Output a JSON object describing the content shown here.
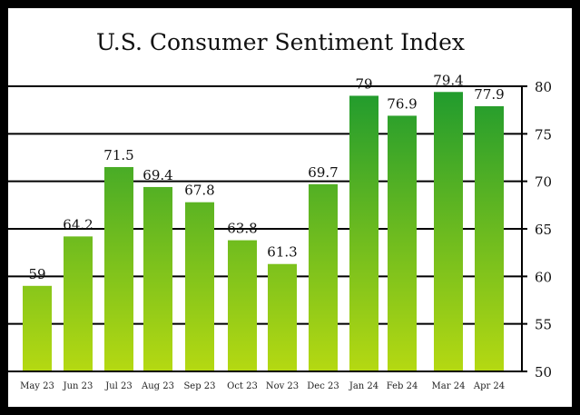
{
  "chart_data": {
    "type": "bar",
    "title": "U.S. Consumer Sentiment Index",
    "xlabel": "",
    "ylabel": "",
    "categories": [
      "May 23",
      "Jun 23",
      "Jul 23",
      "Aug 23",
      "Sep 23",
      "Oct 23",
      "Nov 23",
      "Dec 23",
      "Jan 24",
      "Feb 24",
      "Mar 24",
      "Apr 24"
    ],
    "values": [
      59,
      64.2,
      71.5,
      69.4,
      67.8,
      63.8,
      61.3,
      69.7,
      79,
      76.9,
      79.4,
      77.9
    ],
    "data_labels": [
      "59",
      "64.2",
      "71.5",
      "69.4",
      "67.8",
      "63.8",
      "61.3",
      "69.7",
      "79",
      "76.9",
      "79.4",
      "77.9"
    ],
    "ylim": [
      50,
      80
    ],
    "yticks": [
      50,
      55,
      60,
      65,
      70,
      75,
      80
    ],
    "yaxis_side": "right",
    "grid": true,
    "legend": "none",
    "colors": {
      "bar_top": "#1e9a2e",
      "bar_bottom": "#b5d912",
      "gridline": "#000000",
      "frame": "#000000",
      "background": "#ffffff"
    }
  }
}
